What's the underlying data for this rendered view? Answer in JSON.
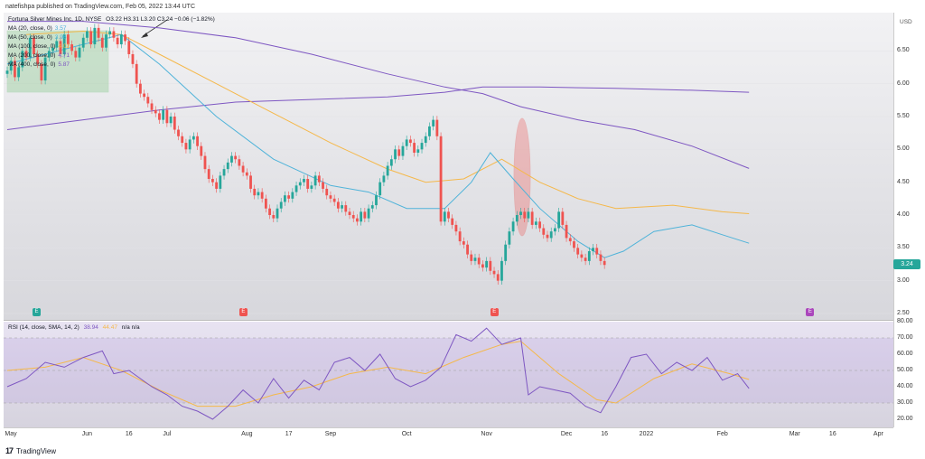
{
  "header": {
    "publisher": "natefishpa published on TradingView.com, Feb 05, 2022 13:44 UTC"
  },
  "legend": {
    "symbol": "Fortuna Silver Mines Inc, 1D, NYSE",
    "ohlc": "O3.22 H3.31 L3.20 C3.24 −0.06 (−1.82%)",
    "ma": [
      {
        "label": "MA (20, close, 0)",
        "value": "3.57",
        "color": "#4fb3d9"
      },
      {
        "label": "MA (50, close, 0)",
        "value": "3.96",
        "color": "#4fb3d9"
      },
      {
        "label": "MA (100, close, 0)",
        "value": "4.02",
        "color": "#f5b84a"
      },
      {
        "label": "MA (200, close, 0)",
        "value": "4.71",
        "color": "#7e57c2"
      },
      {
        "label": "MA (400, close, 0)",
        "value": "5.87",
        "color": "#7e57c2"
      }
    ]
  },
  "currency": "USD",
  "last_price": "3.24",
  "rsi_legend": {
    "label": "RSI (14, close, SMA, 14, 2)",
    "rsi": "38.94",
    "ma": "44.47",
    "na": "n/a  n/a"
  },
  "footer": {
    "brand": "TradingView"
  },
  "markers": [
    {
      "letter": "E",
      "color": "#26a69a",
      "date_index": 0
    },
    {
      "letter": "E",
      "color": "#ef5350",
      "date_index": 61
    },
    {
      "letter": "E",
      "color": "#ef5350",
      "date_index": 127
    },
    {
      "letter": "E",
      "color": "#ab47bc",
      "date_index": 210
    }
  ],
  "chart_data": {
    "type": "candlestick",
    "price_axis": {
      "ylim": [
        2.5,
        7.0
      ],
      "ticks": [
        "6.50",
        "6.00",
        "5.50",
        "5.00",
        "4.50",
        "4.00",
        "3.50",
        "3.00",
        "2.50"
      ],
      "tick_values": [
        6.5,
        6.0,
        5.5,
        5.0,
        4.5,
        4.0,
        3.5,
        3.0,
        2.5
      ]
    },
    "rsi_axis": {
      "ylim": [
        15,
        80
      ],
      "ticks": [
        "80.00",
        "70.00",
        "60.00",
        "50.00",
        "40.00",
        "30.00",
        "20.00"
      ],
      "tick_values": [
        80,
        70,
        60,
        50,
        40,
        30,
        20
      ],
      "bands": [
        30,
        70
      ]
    },
    "x_ticks": [
      {
        "label": "May",
        "i": 0
      },
      {
        "label": "Jun",
        "i": 21
      },
      {
        "label": "16",
        "i": 32
      },
      {
        "label": "Jul",
        "i": 42
      },
      {
        "label": "Aug",
        "i": 63
      },
      {
        "label": "17",
        "i": 74
      },
      {
        "label": "Sep",
        "i": 85
      },
      {
        "label": "Oct",
        "i": 105
      },
      {
        "label": "Nov",
        "i": 126
      },
      {
        "label": "Dec",
        "i": 147
      },
      {
        "label": "16",
        "i": 157
      },
      {
        "label": "2022",
        "i": 168
      },
      {
        "label": "Feb",
        "i": 188
      },
      {
        "label": "Mar",
        "i": 207
      },
      {
        "label": "16",
        "i": 217
      },
      {
        "label": "Apr",
        "i": 229
      }
    ],
    "x_total": 232,
    "closes": [
      6.2,
      6.35,
      6.1,
      6.25,
      6.5,
      6.4,
      6.7,
      6.45,
      6.3,
      6.05,
      6.4,
      6.5,
      6.55,
      6.65,
      6.45,
      6.75,
      6.6,
      6.5,
      6.4,
      6.55,
      6.7,
      6.8,
      6.6,
      6.85,
      6.7,
      6.55,
      6.75,
      6.8,
      6.7,
      6.6,
      6.75,
      6.65,
      6.45,
      6.3,
      6.0,
      5.85,
      5.8,
      5.7,
      5.6,
      5.55,
      5.45,
      5.6,
      5.4,
      5.5,
      5.3,
      5.2,
      5.1,
      5.0,
      5.15,
      5.2,
      5.05,
      4.9,
      4.7,
      4.55,
      4.5,
      4.4,
      4.6,
      4.7,
      4.8,
      4.9,
      4.85,
      4.75,
      4.65,
      4.6,
      4.4,
      4.3,
      4.35,
      4.25,
      4.1,
      4.0,
      3.95,
      4.1,
      4.2,
      4.3,
      4.25,
      4.35,
      4.45,
      4.5,
      4.55,
      4.4,
      4.45,
      4.6,
      4.5,
      4.4,
      4.3,
      4.25,
      4.2,
      4.1,
      4.15,
      4.05,
      4.0,
      3.95,
      3.9,
      4.05,
      3.95,
      4.1,
      4.15,
      4.3,
      4.5,
      4.6,
      4.75,
      4.85,
      5.0,
      4.9,
      5.05,
      5.15,
      5.1,
      4.95,
      5.0,
      5.1,
      5.2,
      5.35,
      5.45,
      5.2,
      3.9,
      4.05,
      3.95,
      3.85,
      3.75,
      3.6,
      3.55,
      3.4,
      3.3,
      3.35,
      3.25,
      3.2,
      3.3,
      3.15,
      3.1,
      3.0,
      3.3,
      3.55,
      3.75,
      3.9,
      4.0,
      4.05,
      3.95,
      4.05,
      3.85,
      3.9,
      3.8,
      3.7,
      3.65,
      3.75,
      3.8,
      4.05,
      3.85,
      3.65,
      3.6,
      3.5,
      3.4,
      3.35,
      3.3,
      3.45,
      3.5,
      3.4,
      3.3,
      3.24
    ],
    "ma20": [
      [
        0,
        6.3
      ],
      [
        20,
        6.6
      ],
      [
        30,
        6.75
      ],
      [
        40,
        6.3
      ],
      [
        55,
        5.5
      ],
      [
        70,
        4.85
      ],
      [
        85,
        4.45
      ],
      [
        95,
        4.35
      ],
      [
        105,
        4.1
      ],
      [
        115,
        4.1
      ],
      [
        122,
        4.5
      ],
      [
        127,
        4.95
      ],
      [
        133,
        4.55
      ],
      [
        140,
        4.1
      ],
      [
        150,
        3.6
      ],
      [
        157,
        3.35
      ],
      [
        162,
        3.45
      ],
      [
        170,
        3.75
      ],
      [
        180,
        3.85
      ],
      [
        188,
        3.7
      ],
      [
        195,
        3.57
      ]
    ],
    "ma100": [
      [
        5,
        6.75
      ],
      [
        20,
        6.8
      ],
      [
        30,
        6.75
      ],
      [
        40,
        6.45
      ],
      [
        55,
        6.0
      ],
      [
        70,
        5.55
      ],
      [
        85,
        5.1
      ],
      [
        100,
        4.7
      ],
      [
        110,
        4.5
      ],
      [
        120,
        4.55
      ],
      [
        130,
        4.85
      ],
      [
        140,
        4.5
      ],
      [
        150,
        4.25
      ],
      [
        160,
        4.1
      ],
      [
        175,
        4.15
      ],
      [
        188,
        4.05
      ],
      [
        195,
        4.02
      ]
    ],
    "ma200": [
      [
        0,
        6.95
      ],
      [
        20,
        6.95
      ],
      [
        40,
        6.85
      ],
      [
        60,
        6.7
      ],
      [
        80,
        6.45
      ],
      [
        100,
        6.15
      ],
      [
        115,
        5.95
      ],
      [
        125,
        5.85
      ],
      [
        135,
        5.65
      ],
      [
        150,
        5.45
      ],
      [
        165,
        5.3
      ],
      [
        180,
        5.05
      ],
      [
        195,
        4.71
      ]
    ],
    "ma400": [
      [
        0,
        5.3
      ],
      [
        20,
        5.45
      ],
      [
        40,
        5.6
      ],
      [
        60,
        5.72
      ],
      [
        80,
        5.76
      ],
      [
        100,
        5.8
      ],
      [
        115,
        5.87
      ],
      [
        125,
        5.95
      ],
      [
        140,
        5.95
      ],
      [
        160,
        5.93
      ],
      [
        180,
        5.9
      ],
      [
        195,
        5.87
      ]
    ],
    "rsi": [
      [
        0,
        40
      ],
      [
        5,
        45
      ],
      [
        10,
        55
      ],
      [
        15,
        52
      ],
      [
        20,
        58
      ],
      [
        25,
        62
      ],
      [
        28,
        48
      ],
      [
        32,
        50
      ],
      [
        38,
        40
      ],
      [
        42,
        35
      ],
      [
        46,
        28
      ],
      [
        50,
        25
      ],
      [
        54,
        20
      ],
      [
        58,
        28
      ],
      [
        62,
        38
      ],
      [
        66,
        30
      ],
      [
        70,
        45
      ],
      [
        74,
        33
      ],
      [
        78,
        44
      ],
      [
        82,
        38
      ],
      [
        86,
        55
      ],
      [
        90,
        58
      ],
      [
        94,
        50
      ],
      [
        98,
        60
      ],
      [
        102,
        45
      ],
      [
        106,
        40
      ],
      [
        110,
        44
      ],
      [
        114,
        52
      ],
      [
        118,
        72
      ],
      [
        122,
        68
      ],
      [
        126,
        76
      ],
      [
        130,
        66
      ],
      [
        135,
        70
      ],
      [
        137,
        35
      ],
      [
        140,
        40
      ],
      [
        144,
        38
      ],
      [
        148,
        36
      ],
      [
        152,
        28
      ],
      [
        156,
        24
      ],
      [
        160,
        40
      ],
      [
        164,
        58
      ],
      [
        168,
        60
      ],
      [
        172,
        48
      ],
      [
        176,
        55
      ],
      [
        180,
        50
      ],
      [
        184,
        58
      ],
      [
        188,
        44
      ],
      [
        192,
        48
      ],
      [
        195,
        38.94
      ]
    ],
    "rsi_ma": [
      [
        0,
        50
      ],
      [
        10,
        52
      ],
      [
        20,
        58
      ],
      [
        30,
        50
      ],
      [
        40,
        38
      ],
      [
        50,
        28
      ],
      [
        60,
        28
      ],
      [
        70,
        35
      ],
      [
        80,
        40
      ],
      [
        90,
        48
      ],
      [
        100,
        52
      ],
      [
        110,
        48
      ],
      [
        120,
        58
      ],
      [
        130,
        66
      ],
      [
        135,
        68
      ],
      [
        145,
        48
      ],
      [
        155,
        32
      ],
      [
        160,
        30
      ],
      [
        170,
        45
      ],
      [
        180,
        54
      ],
      [
        190,
        48
      ],
      [
        195,
        44.47
      ]
    ]
  }
}
